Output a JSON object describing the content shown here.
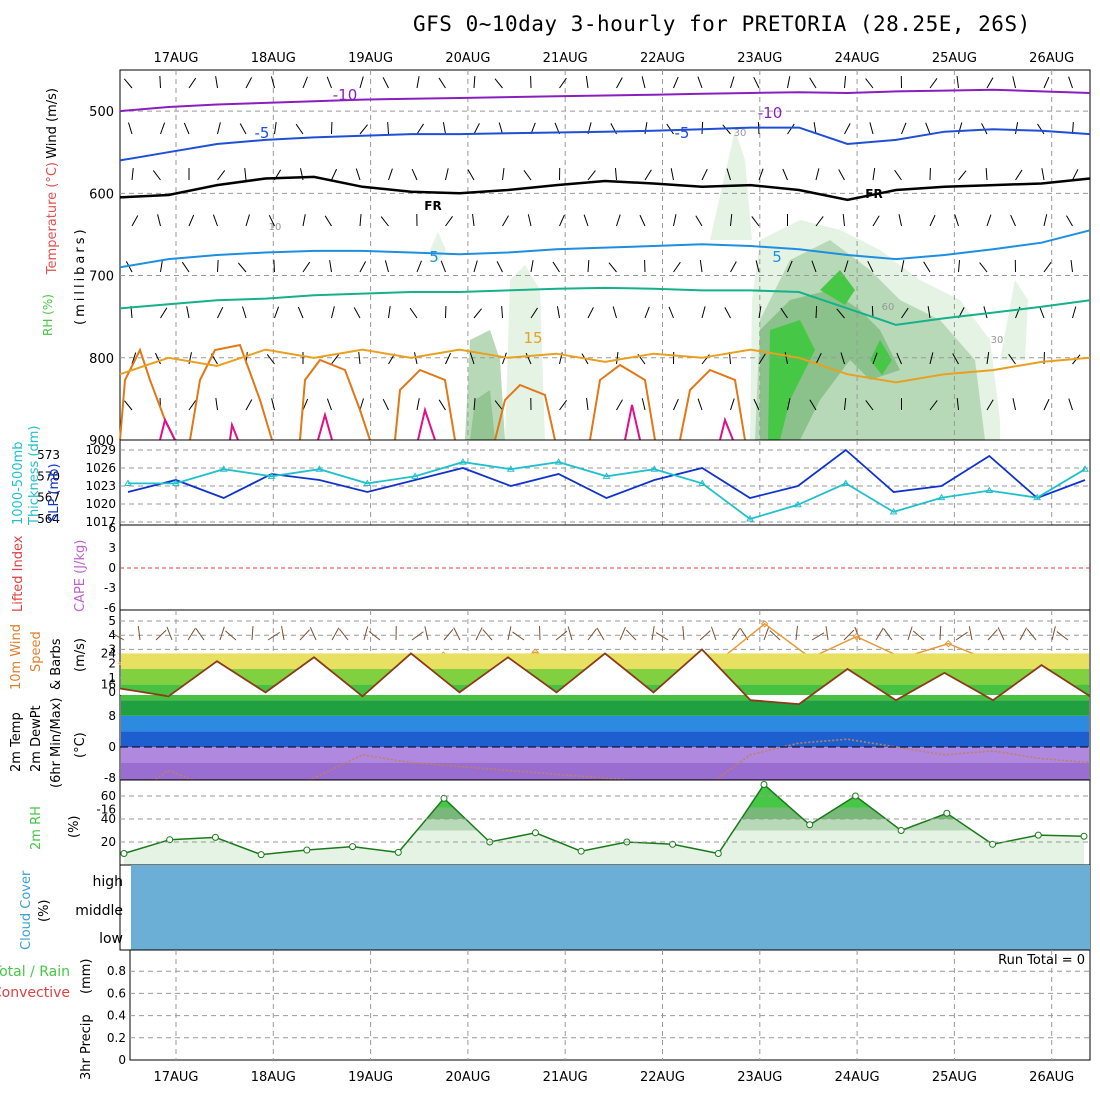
{
  "title": "GFS 0~10day 3-hourly for PRETORIA (28.25E, 26S)",
  "colors": {
    "purple": "#8a1fc0",
    "blue": "#1f4fd6",
    "freezing": "#000000",
    "plus5": "#1e8fe0",
    "teal": "#16b08a",
    "orange": "#e8a020",
    "darkorange": "#e07818",
    "magenta": "#e0108a",
    "rh_light": "#e4f3e4",
    "rh_mid": "#b8d9b8",
    "rh_dark": "#78b878",
    "rh_green": "#46c846",
    "slp": "#1133cc",
    "thick": "#22c0cc",
    "wind10": "#e89a3a",
    "temp_line": "#8b3a1a",
    "cloud": "#6baed6",
    "grid": "#999999"
  },
  "dates": [
    "17AUG",
    "18AUG",
    "19AUG",
    "20AUG",
    "21AUG",
    "22AUG",
    "23AUG",
    "24AUG",
    "25AUG",
    "26AUG"
  ],
  "panel_labels": {
    "upper": {
      "wind": "Wind (m/s)",
      "temperature": "Temperature (°C)",
      "rh": "RH (%)",
      "mb": "(millibars)"
    },
    "slp": {
      "thickness": "1000-500mb",
      "thickness2": "Thickness (dm)",
      "slp": "SLP (mb)"
    },
    "cape": {
      "lifted": "Lifted Index",
      "cape": "CAPE (J/kg)"
    },
    "wind": {
      "line1": "10m Wind",
      "line2": "Speed",
      "line3": "& Barbs",
      "unit": "(m/s)"
    },
    "temp": {
      "line1": "2m Temp",
      "line2": "2m DewPt",
      "line3": "(6hr Min/Max)",
      "unit": "(°C)"
    },
    "rh2m": {
      "line1": "2m RH",
      "unit": "(%)"
    },
    "cloud": {
      "line1": "Cloud Cover",
      "unit": "(%)",
      "high": "high",
      "middle": "middle",
      "low": "low"
    },
    "precip": {
      "line1": "Total / Rain",
      "line2": "Convective",
      "line3": "3hr Precip",
      "unit": "(mm)",
      "run_total": "Run Total = 0"
    }
  },
  "contour_labels": {
    "m10": "-10",
    "m5": "-5",
    "fr": "FR",
    "p5": "5",
    "p15": "15",
    "rh30": "30",
    "rh10": "10",
    "rh60": "60"
  },
  "chart_data": [
    {
      "type": "line",
      "title": "GFS 0~10day 3-hourly for PRETORIA (28.25E, 26S)",
      "ylabel": "(millibars)",
      "y_ticks": [
        "500",
        "600",
        "700",
        "800",
        "900"
      ],
      "ylim": [
        900,
        450
      ],
      "x_tick_labels": [
        "17AUG",
        "18AUG",
        "19AUG",
        "20AUG",
        "21AUG",
        "22AUG",
        "23AUG",
        "24AUG",
        "25AUG",
        "26AUG"
      ],
      "series": [
        {
          "name": "-10",
          "values": [
            500,
            495,
            492,
            490,
            488,
            486,
            485,
            484,
            483,
            482,
            481,
            480,
            479,
            478,
            477,
            478,
            476,
            475,
            474,
            476,
            478
          ]
        },
        {
          "name": "-5",
          "values": [
            560,
            550,
            540,
            535,
            532,
            530,
            528,
            528,
            527,
            526,
            525,
            524,
            522,
            520,
            520,
            540,
            535,
            525,
            522,
            524,
            528
          ]
        },
        {
          "name": "FR",
          "values": [
            605,
            602,
            590,
            582,
            580,
            592,
            598,
            600,
            596,
            590,
            585,
            588,
            592,
            590,
            596,
            608,
            596,
            592,
            590,
            588,
            582
          ]
        },
        {
          "name": "5",
          "values": [
            690,
            680,
            675,
            672,
            670,
            670,
            672,
            674,
            672,
            668,
            666,
            664,
            662,
            664,
            668,
            675,
            680,
            675,
            668,
            660,
            645
          ]
        },
        {
          "name": "10",
          "values": [
            740,
            735,
            730,
            728,
            724,
            722,
            720,
            720,
            718,
            716,
            715,
            716,
            718,
            718,
            720,
            740,
            760,
            752,
            745,
            738,
            730
          ]
        },
        {
          "name": "15",
          "values": [
            820,
            800,
            810,
            790,
            800,
            790,
            800,
            790,
            800,
            795,
            805,
            795,
            800,
            790,
            800,
            820,
            830,
            820,
            815,
            805,
            800
          ]
        }
      ]
    },
    {
      "type": "line",
      "ylabel": "SLP (mb)",
      "y_ticks": [
        "1017",
        "1020",
        "1023",
        "1026",
        "1029"
      ],
      "y2_ticks": [
        "564",
        "567",
        "570",
        "573"
      ],
      "series": [
        {
          "name": "SLP",
          "values": [
            1022,
            1024,
            1021,
            1025,
            1024,
            1022,
            1024,
            1026,
            1023,
            1025,
            1021,
            1024,
            1026,
            1021,
            1023,
            1029,
            1022,
            1023,
            1028,
            1021,
            1024
          ]
        },
        {
          "name": "Thickness",
          "values": [
            569,
            569,
            571,
            570,
            571,
            569,
            570,
            572,
            571,
            572,
            570,
            571,
            569,
            564,
            566,
            569,
            565,
            567,
            568,
            567,
            571
          ]
        }
      ]
    },
    {
      "type": "line",
      "ylabel": "Lifted Index",
      "y_ticks": [
        "6",
        "3",
        "0",
        "-3",
        "-6"
      ]
    },
    {
      "type": "line",
      "ylabel": "(m/s)",
      "y_ticks": [
        "0",
        "1",
        "2",
        "3",
        "4",
        "5"
      ],
      "series": [
        {
          "name": "10m Wind Speed",
          "values": [
            2.0,
            0.6,
            1.2,
            2.4,
            0.8,
            1.8,
            0.7,
            2.6,
            1.3,
            2.8,
            1.5,
            2.4,
            0.6,
            2.2,
            4.8,
            2.4,
            3.9,
            2.4,
            3.4,
            2.1,
            1.6,
            0.4
          ]
        }
      ]
    },
    {
      "type": "area",
      "ylabel": "(°C)",
      "y_ticks": [
        "24",
        "16",
        "8",
        "0",
        "-8",
        "-16"
      ],
      "series": [
        {
          "name": "2m Temp",
          "values": [
            15,
            13,
            22,
            14,
            23,
            13,
            24,
            14,
            23,
            14,
            24,
            14,
            25,
            12,
            11,
            20,
            12,
            19,
            12,
            21,
            13
          ]
        },
        {
          "name": "2m DewPt",
          "values": [
            -15,
            -6,
            -11,
            -13,
            -8,
            -2,
            -4,
            -5,
            -6,
            -7,
            -8,
            -9,
            -11,
            -2,
            1,
            2,
            0,
            -2,
            -1,
            -3,
            -4
          ]
        }
      ]
    },
    {
      "type": "area",
      "ylabel": "(%)",
      "y_ticks": [
        "20",
        "40",
        "60"
      ],
      "series": [
        {
          "name": "2m RH",
          "values": [
            10,
            22,
            24,
            9,
            13,
            16,
            11,
            58,
            20,
            28,
            12,
            20,
            18,
            10,
            70,
            35,
            60,
            30,
            45,
            18,
            26,
            25
          ]
        }
      ]
    },
    {
      "type": "bar",
      "ylabel": "(%)",
      "y_ticks": [
        "high",
        "middle",
        "low"
      ]
    },
    {
      "type": "bar",
      "ylabel": "3hr Precip",
      "y_ticks": [
        "0",
        "0.2",
        "0.4",
        "0.6",
        "0.8"
      ],
      "values": []
    }
  ]
}
